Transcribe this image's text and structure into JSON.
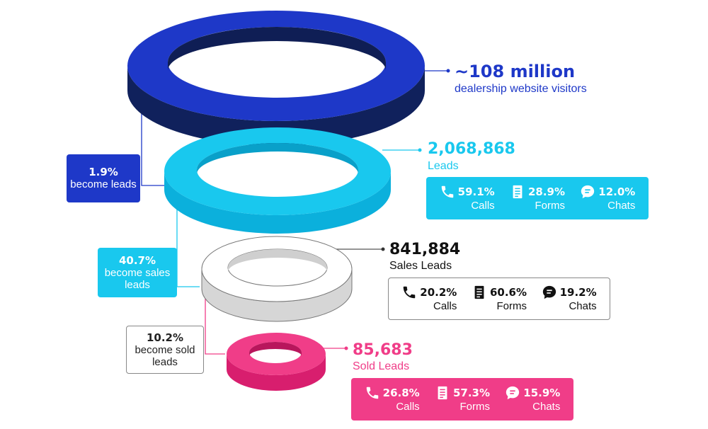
{
  "colors": {
    "navy": "#1e38c8",
    "navy_dark": "#10215c",
    "cyan": "#19c8ee",
    "cyan_dark": "#0bb0dc",
    "gray_top": "#ffffff",
    "gray_side": "#d6d6d6",
    "pink": "#f03d88",
    "pink_dark": "#d81e6e"
  },
  "stages": [
    {
      "value": "~108 million",
      "label": "dealership website visitors"
    },
    {
      "value": "2,068,868",
      "label": "Leads",
      "stats": [
        {
          "icon": "phone-icon",
          "pct": "59.1%",
          "label": "Calls"
        },
        {
          "icon": "form-icon",
          "pct": "28.9%",
          "label": "Forms"
        },
        {
          "icon": "chat-icon",
          "pct": "12.0%",
          "label": "Chats"
        }
      ]
    },
    {
      "value": "841,884",
      "label": "Sales Leads",
      "stats": [
        {
          "icon": "phone-icon",
          "pct": "20.2%",
          "label": "Calls"
        },
        {
          "icon": "form-icon",
          "pct": "60.6%",
          "label": "Forms"
        },
        {
          "icon": "chat-icon",
          "pct": "19.2%",
          "label": "Chats"
        }
      ]
    },
    {
      "value": "85,683",
      "label": "Sold Leads",
      "stats": [
        {
          "icon": "phone-icon",
          "pct": "26.8%",
          "label": "Calls"
        },
        {
          "icon": "form-icon",
          "pct": "57.3%",
          "label": "Forms"
        },
        {
          "icon": "chat-icon",
          "pct": "15.9%",
          "label": "Chats"
        }
      ]
    }
  ],
  "conversions": [
    {
      "pct": "1.9%",
      "text": "become leads"
    },
    {
      "pct": "40.7%",
      "text": "become sales leads"
    },
    {
      "pct": "10.2%",
      "text": "become sold leads"
    }
  ]
}
